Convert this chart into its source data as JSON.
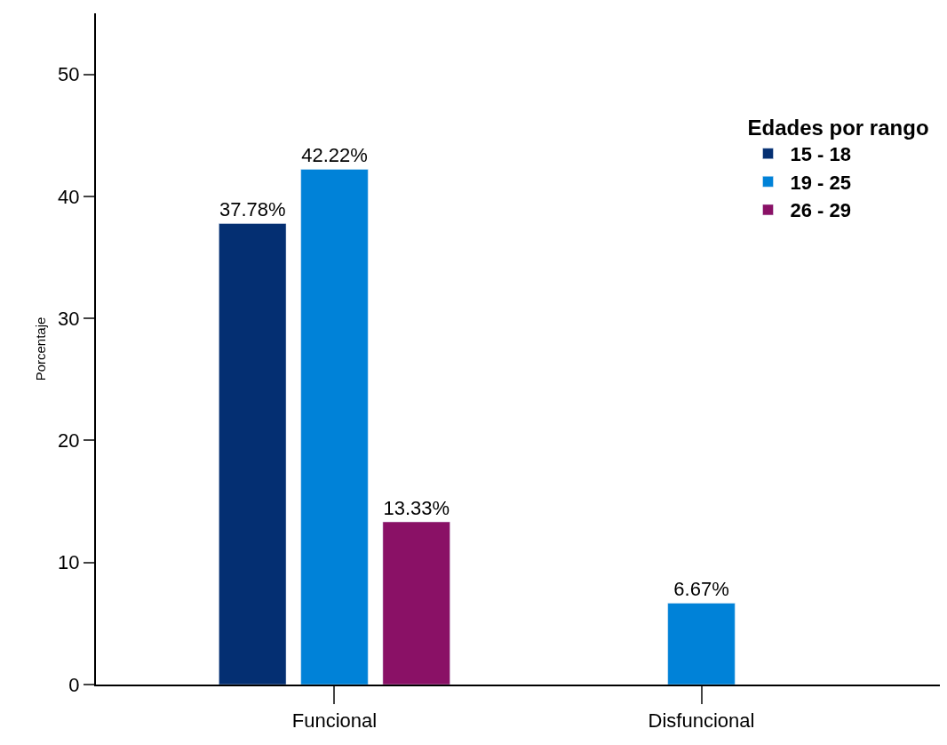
{
  "chart_data": {
    "type": "bar",
    "ylabel": "Porcentaje",
    "legend_title": "Edades por rango",
    "categories": [
      "Funcional",
      "Disfuncional"
    ],
    "series": [
      {
        "name": "15 - 18",
        "color": "#042f72",
        "values": [
          37.78,
          null
        ],
        "value_labels": [
          "37.78%",
          null
        ]
      },
      {
        "name": "19 - 25",
        "color": "#0082d8",
        "values": [
          42.22,
          6.67
        ],
        "value_labels": [
          "42.22%",
          "6.67%"
        ]
      },
      {
        "name": "26 - 29",
        "color": "#8a1166",
        "values": [
          13.33,
          null
        ],
        "value_labels": [
          "13.33%",
          null
        ]
      }
    ],
    "ylim": [
      0,
      55
    ],
    "yticks": [
      0,
      10,
      20,
      30,
      40,
      50
    ],
    "legend": "top right"
  }
}
